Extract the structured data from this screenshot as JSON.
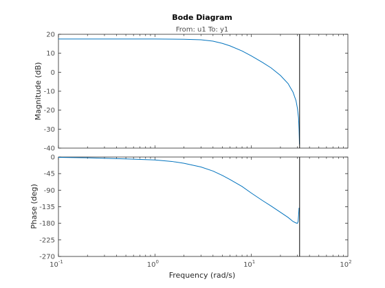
{
  "chart_data": {
    "type": "line",
    "title": "Bode Diagram",
    "subtitle": "From: u1  To: y1",
    "xlabel": "Frequency  (rad/s)",
    "x_scale": "log",
    "xlim": [
      0.1,
      100
    ],
    "x_ticks": [
      {
        "value": 0.1,
        "base": "10",
        "exp": "-1"
      },
      {
        "value": 1,
        "base": "10",
        "exp": "0"
      },
      {
        "value": 10,
        "base": "10",
        "exp": "1"
      },
      {
        "value": 100,
        "base": "10",
        "exp": "2"
      }
    ],
    "vertical_marker_x": 31.6,
    "line_color": "#0072bd",
    "marker_color": "#000000",
    "grid": false,
    "panels": [
      {
        "name": "magnitude",
        "ylabel": "Magnitude (dB)",
        "ylim": [
          -40,
          20
        ],
        "y_ticks": [
          "20",
          "10",
          "0",
          "-10",
          "-20",
          "-30",
          "-40"
        ],
        "y_tick_values": [
          20,
          10,
          0,
          -10,
          -20,
          -30,
          -40
        ],
        "x": [
          0.1,
          0.5,
          1,
          2,
          3,
          4,
          5,
          6,
          8,
          10,
          13,
          16,
          20,
          24,
          27,
          29,
          30,
          30.8,
          31.2,
          31.5
        ],
        "y": [
          17.5,
          17.5,
          17.5,
          17.4,
          17.1,
          16.4,
          15.2,
          13.9,
          11.2,
          8.6,
          5.2,
          2.3,
          -1.7,
          -6.0,
          -10.5,
          -15.0,
          -19.0,
          -24.0,
          -30.0,
          -38.0
        ]
      },
      {
        "name": "phase",
        "ylabel": "Phase (deg)",
        "ylim": [
          -270,
          0
        ],
        "y_ticks": [
          "0",
          "-45",
          "-90",
          "-135",
          "-180",
          "-225",
          "-270"
        ],
        "y_tick_values": [
          0,
          -45,
          -90,
          -135,
          -180,
          -225,
          -270
        ],
        "x": [
          0.1,
          0.2,
          0.5,
          1,
          1.5,
          2,
          3,
          4,
          5,
          6,
          8,
          10,
          13,
          16,
          20,
          24,
          27,
          29,
          30,
          30.5,
          30.8,
          31.2
        ],
        "y": [
          -1,
          -2,
          -5,
          -8,
          -12,
          -17,
          -27,
          -38,
          -50,
          -61,
          -80,
          -98,
          -118,
          -133,
          -150,
          -164,
          -175,
          -179,
          -180,
          -175,
          -160,
          -138
        ]
      }
    ]
  }
}
